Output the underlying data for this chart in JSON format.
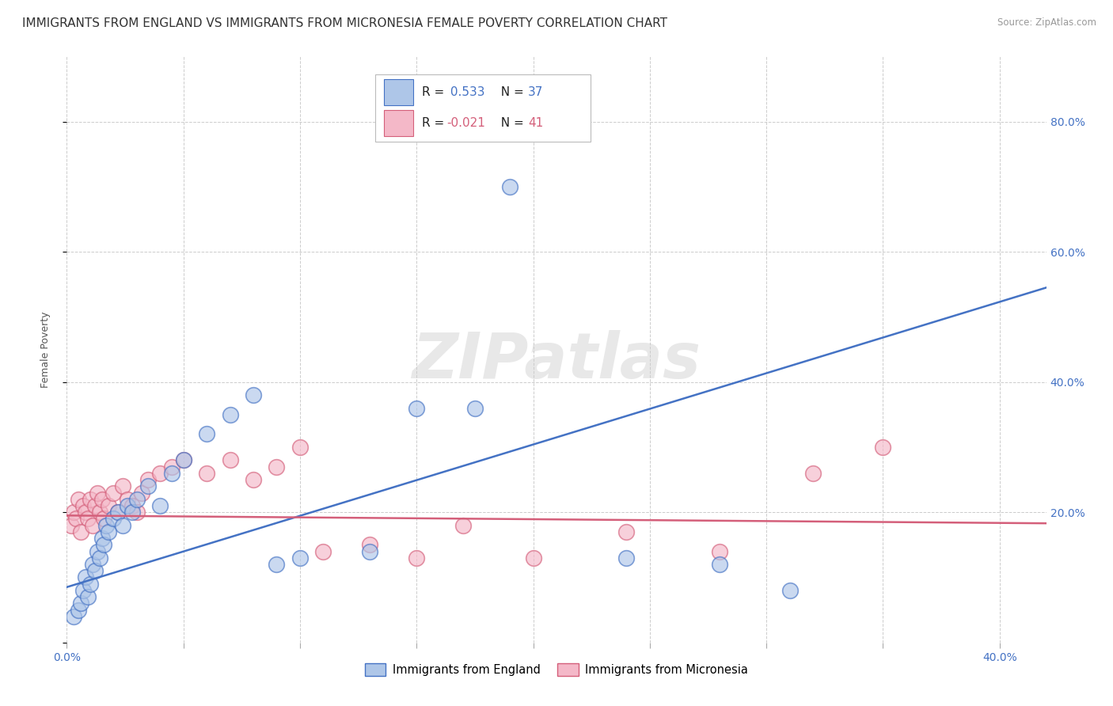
{
  "title": "IMMIGRANTS FROM ENGLAND VS IMMIGRANTS FROM MICRONESIA FEMALE POVERTY CORRELATION CHART",
  "source": "Source: ZipAtlas.com",
  "ylabel": "Female Poverty",
  "xlim": [
    0.0,
    0.42
  ],
  "ylim": [
    0.0,
    0.9
  ],
  "england_R": 0.533,
  "england_N": 37,
  "micronesia_R": -0.021,
  "micronesia_N": 41,
  "england_color": "#aec6e8",
  "england_line_color": "#4472c4",
  "micronesia_color": "#f4b8c8",
  "micronesia_line_color": "#d45f7a",
  "england_scatter_x": [
    0.003,
    0.005,
    0.006,
    0.007,
    0.008,
    0.009,
    0.01,
    0.011,
    0.012,
    0.013,
    0.014,
    0.015,
    0.016,
    0.017,
    0.018,
    0.02,
    0.022,
    0.024,
    0.026,
    0.028,
    0.03,
    0.035,
    0.04,
    0.045,
    0.05,
    0.06,
    0.07,
    0.08,
    0.09,
    0.1,
    0.13,
    0.15,
    0.175,
    0.19,
    0.24,
    0.28,
    0.31
  ],
  "england_scatter_y": [
    0.04,
    0.05,
    0.06,
    0.08,
    0.1,
    0.07,
    0.09,
    0.12,
    0.11,
    0.14,
    0.13,
    0.16,
    0.15,
    0.18,
    0.17,
    0.19,
    0.2,
    0.18,
    0.21,
    0.2,
    0.22,
    0.24,
    0.21,
    0.26,
    0.28,
    0.32,
    0.35,
    0.38,
    0.12,
    0.13,
    0.14,
    0.36,
    0.36,
    0.7,
    0.13,
    0.12,
    0.08
  ],
  "micronesia_scatter_x": [
    0.002,
    0.003,
    0.004,
    0.005,
    0.006,
    0.007,
    0.008,
    0.009,
    0.01,
    0.011,
    0.012,
    0.013,
    0.014,
    0.015,
    0.016,
    0.018,
    0.02,
    0.022,
    0.024,
    0.026,
    0.028,
    0.03,
    0.032,
    0.035,
    0.04,
    0.045,
    0.05,
    0.06,
    0.07,
    0.08,
    0.09,
    0.1,
    0.11,
    0.13,
    0.15,
    0.17,
    0.2,
    0.24,
    0.28,
    0.32,
    0.35
  ],
  "micronesia_scatter_y": [
    0.18,
    0.2,
    0.19,
    0.22,
    0.17,
    0.21,
    0.2,
    0.19,
    0.22,
    0.18,
    0.21,
    0.23,
    0.2,
    0.22,
    0.19,
    0.21,
    0.23,
    0.2,
    0.24,
    0.22,
    0.21,
    0.2,
    0.23,
    0.25,
    0.26,
    0.27,
    0.28,
    0.26,
    0.28,
    0.25,
    0.27,
    0.3,
    0.14,
    0.15,
    0.13,
    0.18,
    0.13,
    0.17,
    0.14,
    0.26,
    0.3
  ],
  "england_trendline_x": [
    0.0,
    0.42
  ],
  "england_trendline_y": [
    0.085,
    0.545
  ],
  "micronesia_trendline_x": [
    0.0,
    0.42
  ],
  "micronesia_trendline_y": [
    0.195,
    0.183
  ],
  "background_color": "#ffffff",
  "grid_color": "#cccccc",
  "title_fontsize": 11,
  "axis_label_fontsize": 9,
  "tick_fontsize": 10,
  "right_tick_color": "#4472c4"
}
